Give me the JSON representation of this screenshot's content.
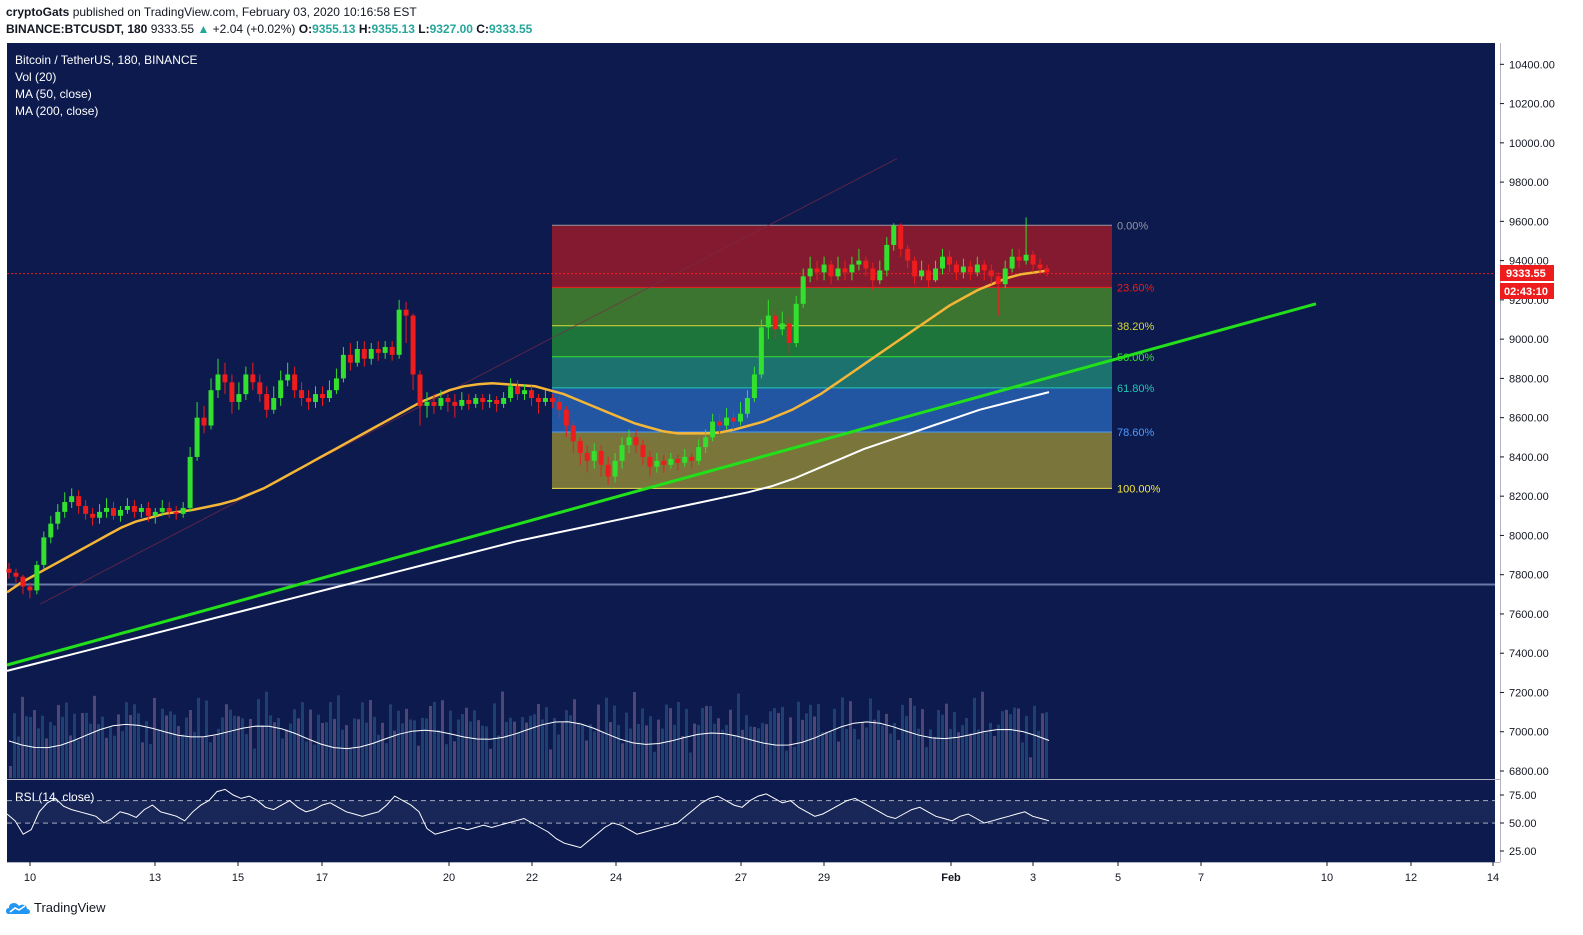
{
  "header": {
    "author": "cryptoGats",
    "published": "published on TradingView.com, February 03, 2020 10:16:58 EST",
    "symbol_line": "BINANCE:BTCUSDT, 180",
    "last": "9333.55",
    "change": "+2.04 (+0.02%)",
    "o_label": "O:",
    "o": "9355.13",
    "h_label": "H:",
    "h": "9355.13",
    "l_label": "L:",
    "l": "9327.00",
    "c_label": "C:",
    "c": "9333.55"
  },
  "legend": {
    "title": "Bitcoin / TetherUS, 180, BINANCE",
    "vol": "Vol (20)",
    "ma50": "MA (50, close)",
    "ma200": "MA (200, close)",
    "rsi": "RSI (14, close)"
  },
  "footer": {
    "brand": "TradingView"
  },
  "colors": {
    "background": "#0c1a4d",
    "up": "#33e02e",
    "down": "#ee1c1c",
    "ma50": "#f5b637",
    "ma200": "#ffffff",
    "trendline": "#22e01a",
    "price_tag": "#ee1c1c"
  },
  "price_tag": {
    "price": "9333.55",
    "countdown": "02:43:10"
  },
  "chart_data": {
    "type": "candlestick",
    "title": "Bitcoin / TetherUS, 180, BINANCE",
    "y_ticks": [
      10400,
      10200,
      10000,
      9800,
      9600,
      9400,
      9200,
      9000,
      8800,
      8600,
      8400,
      8200,
      8000,
      7800,
      7600,
      7400,
      7200,
      7000,
      6800
    ],
    "y_tick_labels": [
      "10400.00",
      "10200.00",
      "10000.00",
      "9800.00",
      "9600.00",
      "9400.00",
      "9200.00",
      "9000.00",
      "8800.00",
      "8600.00",
      "8400.00",
      "8200.00",
      "8000.00",
      "7800.00",
      "7600.00",
      "7400.00",
      "7200.00",
      "7000.00",
      "6800.00"
    ],
    "ylim": [
      6700,
      10500
    ],
    "x_tick_labels": [
      "10",
      "13",
      "15",
      "17",
      "20",
      "22",
      "24",
      "27",
      "29",
      "Feb",
      "3",
      "5",
      "7",
      "10",
      "12",
      "14"
    ],
    "last_price": 9333.55,
    "fibonacci": {
      "high": 9580,
      "low": 8240,
      "levels": [
        {
          "label": "0.00%",
          "price": 9580,
          "color": "#9598a1"
        },
        {
          "label": "23.60%",
          "price": 9264,
          "color": "#ee1c1c"
        },
        {
          "label": "38.20%",
          "price": 9068,
          "color": "#d6d93a"
        },
        {
          "label": "50.00%",
          "price": 8910,
          "color": "#33e02e"
        },
        {
          "label": "61.80%",
          "price": 8752,
          "color": "#26c6b4"
        },
        {
          "label": "78.60%",
          "price": 8527,
          "color": "#4c9cff"
        },
        {
          "label": "100.00%",
          "price": 8240,
          "color": "#f5e642"
        }
      ]
    },
    "horizontal_line": 7750,
    "rsi": {
      "title": "RSI (14, close)",
      "ticks": [
        75,
        50,
        25
      ],
      "tick_labels": [
        "75.00",
        "50.00",
        "25.00"
      ],
      "bands": [
        70,
        50
      ]
    },
    "candles": [
      [
        7830,
        7810,
        7860,
        7780
      ],
      [
        7810,
        7790,
        7830,
        7760
      ],
      [
        7790,
        7740,
        7800,
        7700
      ],
      [
        7740,
        7720,
        7760,
        7680
      ],
      [
        7720,
        7850,
        7870,
        7700
      ],
      [
        7850,
        7990,
        8020,
        7830
      ],
      [
        7990,
        8060,
        8100,
        7960
      ],
      [
        8060,
        8120,
        8160,
        8030
      ],
      [
        8120,
        8170,
        8220,
        8090
      ],
      [
        8170,
        8200,
        8240,
        8140
      ],
      [
        8200,
        8150,
        8230,
        8110
      ],
      [
        8150,
        8110,
        8180,
        8080
      ],
      [
        8110,
        8090,
        8140,
        8050
      ],
      [
        8090,
        8120,
        8160,
        8060
      ],
      [
        8120,
        8140,
        8190,
        8090
      ],
      [
        8140,
        8100,
        8170,
        8080
      ],
      [
        8100,
        8130,
        8150,
        8070
      ],
      [
        8130,
        8150,
        8190,
        8110
      ],
      [
        8150,
        8120,
        8180,
        8090
      ],
      [
        8120,
        8140,
        8160,
        8090
      ],
      [
        8140,
        8100,
        8170,
        8070
      ],
      [
        8100,
        8120,
        8140,
        8060
      ],
      [
        8120,
        8140,
        8180,
        8100
      ],
      [
        8140,
        8120,
        8170,
        8090
      ],
      [
        8120,
        8110,
        8150,
        8080
      ],
      [
        8110,
        8140,
        8170,
        8090
      ],
      [
        8140,
        8400,
        8450,
        8120
      ],
      [
        8400,
        8600,
        8680,
        8380
      ],
      [
        8600,
        8560,
        8660,
        8520
      ],
      [
        8560,
        8740,
        8800,
        8540
      ],
      [
        8740,
        8820,
        8900,
        8700
      ],
      [
        8820,
        8780,
        8880,
        8720
      ],
      [
        8780,
        8680,
        8820,
        8620
      ],
      [
        8680,
        8720,
        8780,
        8640
      ],
      [
        8720,
        8820,
        8860,
        8690
      ],
      [
        8820,
        8780,
        8880,
        8740
      ],
      [
        8780,
        8720,
        8820,
        8680
      ],
      [
        8720,
        8640,
        8760,
        8600
      ],
      [
        8640,
        8700,
        8760,
        8620
      ],
      [
        8700,
        8790,
        8840,
        8660
      ],
      [
        8790,
        8820,
        8880,
        8760
      ],
      [
        8820,
        8740,
        8860,
        8700
      ],
      [
        8740,
        8700,
        8780,
        8660
      ],
      [
        8700,
        8680,
        8740,
        8640
      ],
      [
        8680,
        8720,
        8760,
        8650
      ],
      [
        8720,
        8700,
        8760,
        8660
      ],
      [
        8700,
        8740,
        8790,
        8680
      ],
      [
        8740,
        8800,
        8850,
        8720
      ],
      [
        8800,
        8920,
        8960,
        8780
      ],
      [
        8920,
        8880,
        8980,
        8840
      ],
      [
        8880,
        8950,
        8990,
        8860
      ],
      [
        8950,
        8900,
        8990,
        8860
      ],
      [
        8900,
        8950,
        8980,
        8870
      ],
      [
        8950,
        8930,
        8990,
        8890
      ],
      [
        8930,
        8960,
        8990,
        8900
      ],
      [
        8960,
        8920,
        8990,
        8890
      ],
      [
        8920,
        9150,
        9200,
        8900
      ],
      [
        9150,
        9120,
        9190,
        8980
      ],
      [
        9120,
        8820,
        9130,
        8740
      ],
      [
        8820,
        8660,
        8840,
        8560
      ],
      [
        8660,
        8680,
        8730,
        8600
      ],
      [
        8680,
        8660,
        8720,
        8620
      ],
      [
        8660,
        8700,
        8740,
        8640
      ],
      [
        8700,
        8680,
        8720,
        8630
      ],
      [
        8680,
        8660,
        8720,
        8600
      ],
      [
        8660,
        8690,
        8730,
        8640
      ],
      [
        8690,
        8670,
        8720,
        8640
      ],
      [
        8670,
        8700,
        8720,
        8650
      ],
      [
        8700,
        8680,
        8720,
        8640
      ],
      [
        8680,
        8690,
        8720,
        8650
      ],
      [
        8690,
        8670,
        8710,
        8630
      ],
      [
        8670,
        8700,
        8730,
        8650
      ],
      [
        8700,
        8760,
        8800,
        8680
      ],
      [
        8760,
        8720,
        8790,
        8690
      ],
      [
        8720,
        8740,
        8770,
        8690
      ],
      [
        8740,
        8700,
        8760,
        8660
      ],
      [
        8700,
        8680,
        8720,
        8620
      ],
      [
        8680,
        8700,
        8740,
        8660
      ],
      [
        8700,
        8680,
        8720,
        8650
      ],
      [
        8680,
        8640,
        8710,
        8600
      ],
      [
        8640,
        8560,
        8660,
        8500
      ],
      [
        8560,
        8480,
        8580,
        8420
      ],
      [
        8480,
        8420,
        8500,
        8360
      ],
      [
        8420,
        8380,
        8460,
        8320
      ],
      [
        8380,
        8430,
        8470,
        8340
      ],
      [
        8430,
        8360,
        8460,
        8300
      ],
      [
        8360,
        8300,
        8400,
        8260
      ],
      [
        8300,
        8380,
        8420,
        8270
      ],
      [
        8380,
        8460,
        8500,
        8340
      ],
      [
        8460,
        8500,
        8540,
        8420
      ],
      [
        8500,
        8460,
        8540,
        8420
      ],
      [
        8460,
        8400,
        8490,
        8360
      ],
      [
        8400,
        8350,
        8430,
        8300
      ],
      [
        8350,
        8380,
        8420,
        8320
      ],
      [
        8380,
        8360,
        8410,
        8320
      ],
      [
        8360,
        8390,
        8420,
        8340
      ],
      [
        8390,
        8370,
        8410,
        8330
      ],
      [
        8370,
        8400,
        8440,
        8350
      ],
      [
        8400,
        8380,
        8420,
        8340
      ],
      [
        8380,
        8450,
        8490,
        8360
      ],
      [
        8450,
        8500,
        8540,
        8420
      ],
      [
        8500,
        8580,
        8620,
        8480
      ],
      [
        8580,
        8560,
        8620,
        8520
      ],
      [
        8560,
        8600,
        8650,
        8540
      ],
      [
        8600,
        8580,
        8640,
        8540
      ],
      [
        8580,
        8620,
        8680,
        8560
      ],
      [
        8620,
        8700,
        8740,
        8600
      ],
      [
        8700,
        8820,
        8860,
        8680
      ],
      [
        8820,
        9060,
        9100,
        8800
      ],
      [
        9060,
        9120,
        9200,
        9000
      ],
      [
        9120,
        9050,
        9150,
        9000
      ],
      [
        9050,
        9080,
        9140,
        9020
      ],
      [
        9080,
        8980,
        9120,
        8920
      ],
      [
        8980,
        9180,
        9220,
        8960
      ],
      [
        9180,
        9320,
        9360,
        9160
      ],
      [
        9320,
        9360,
        9420,
        9290
      ],
      [
        9360,
        9340,
        9400,
        9300
      ],
      [
        9340,
        9380,
        9420,
        9300
      ],
      [
        9380,
        9320,
        9400,
        9280
      ],
      [
        9320,
        9360,
        9420,
        9300
      ],
      [
        9360,
        9340,
        9400,
        9300
      ],
      [
        9340,
        9380,
        9420,
        9300
      ],
      [
        9380,
        9400,
        9460,
        9350
      ],
      [
        9400,
        9360,
        9420,
        9320
      ],
      [
        9360,
        9300,
        9390,
        9250
      ],
      [
        9300,
        9350,
        9400,
        9280
      ],
      [
        9350,
        9480,
        9520,
        9320
      ],
      [
        9480,
        9580,
        9590,
        9450
      ],
      [
        9580,
        9460,
        9590,
        9420
      ],
      [
        9460,
        9400,
        9480,
        9360
      ],
      [
        9400,
        9320,
        9420,
        9280
      ],
      [
        9320,
        9350,
        9400,
        9300
      ],
      [
        9350,
        9300,
        9380,
        9260
      ],
      [
        9300,
        9360,
        9400,
        9290
      ],
      [
        9360,
        9420,
        9460,
        9330
      ],
      [
        9420,
        9380,
        9450,
        9340
      ],
      [
        9380,
        9340,
        9400,
        9300
      ],
      [
        9340,
        9370,
        9410,
        9310
      ],
      [
        9370,
        9340,
        9400,
        9300
      ],
      [
        9340,
        9380,
        9420,
        9320
      ],
      [
        9380,
        9350,
        9400,
        9300
      ],
      [
        9350,
        9320,
        9380,
        9280
      ],
      [
        9320,
        9280,
        9340,
        9120
      ],
      [
        9280,
        9360,
        9400,
        9260
      ],
      [
        9360,
        9420,
        9460,
        9340
      ],
      [
        9420,
        9400,
        9460,
        9360
      ],
      [
        9400,
        9430,
        9620,
        9380
      ],
      [
        9430,
        9380,
        9450,
        9340
      ],
      [
        9380,
        9360,
        9410,
        9330
      ],
      [
        9360,
        9340,
        9380,
        9320
      ]
    ],
    "ma50": [
      7710,
      7760,
      7800,
      7840,
      7880,
      7920,
      7960,
      8000,
      8040,
      8070,
      8090,
      8110,
      8120,
      8130,
      8145,
      8160,
      8180,
      8210,
      8240,
      8280,
      8320,
      8360,
      8400,
      8440,
      8480,
      8520,
      8560,
      8600,
      8640,
      8680,
      8710,
      8740,
      8760,
      8770,
      8775,
      8770,
      8765,
      8760,
      8740,
      8720,
      8690,
      8660,
      8630,
      8600,
      8570,
      8550,
      8530,
      8520,
      8520,
      8520,
      8525,
      8540,
      8560,
      8580,
      8610,
      8640,
      8680,
      8720,
      8770,
      8820,
      8870,
      8920,
      8970,
      9020,
      9070,
      9120,
      9170,
      9210,
      9250,
      9280,
      9310,
      9330,
      9340,
      9350
    ],
    "ma200": [
      7310,
      7340,
      7370,
      7400,
      7430,
      7460,
      7490,
      7520,
      7550,
      7580,
      7610,
      7640,
      7670,
      7700,
      7730,
      7760,
      7790,
      7820,
      7850,
      7880,
      7910,
      7940,
      7970,
      7995,
      8020,
      8045,
      8070,
      8095,
      8120,
      8145,
      8170,
      8195,
      8220,
      8250,
      8290,
      8340,
      8390,
      8440,
      8480,
      8520,
      8560,
      8600,
      8640,
      8670,
      8700,
      8730
    ],
    "trendline": {
      "start": [
        0,
        7340
      ],
      "end": [
        1,
        9180
      ]
    },
    "rsi_values": [
      58,
      52,
      40,
      44,
      60,
      68,
      72,
      65,
      62,
      60,
      58,
      56,
      50,
      54,
      60,
      58,
      55,
      62,
      66,
      60,
      58,
      56,
      52,
      60,
      66,
      70,
      78,
      80,
      75,
      72,
      74,
      70,
      64,
      62,
      66,
      70,
      64,
      60,
      62,
      66,
      68,
      64,
      60,
      58,
      56,
      58,
      60,
      66,
      74,
      70,
      66,
      60,
      45,
      40,
      42,
      44,
      46,
      44,
      46,
      48,
      46,
      48,
      50,
      52,
      54,
      50,
      46,
      42,
      36,
      32,
      30,
      28,
      34,
      40,
      46,
      50,
      48,
      44,
      40,
      42,
      44,
      46,
      48,
      50,
      56,
      62,
      68,
      72,
      74,
      70,
      66,
      64,
      70,
      74,
      76,
      72,
      68,
      70,
      64,
      60,
      56,
      58,
      62,
      66,
      70,
      72,
      68,
      64,
      60,
      56,
      54,
      58,
      62,
      64,
      60,
      56,
      54,
      52,
      56,
      58,
      54,
      50,
      52,
      54,
      56,
      58,
      60,
      56,
      54,
      52
    ]
  }
}
